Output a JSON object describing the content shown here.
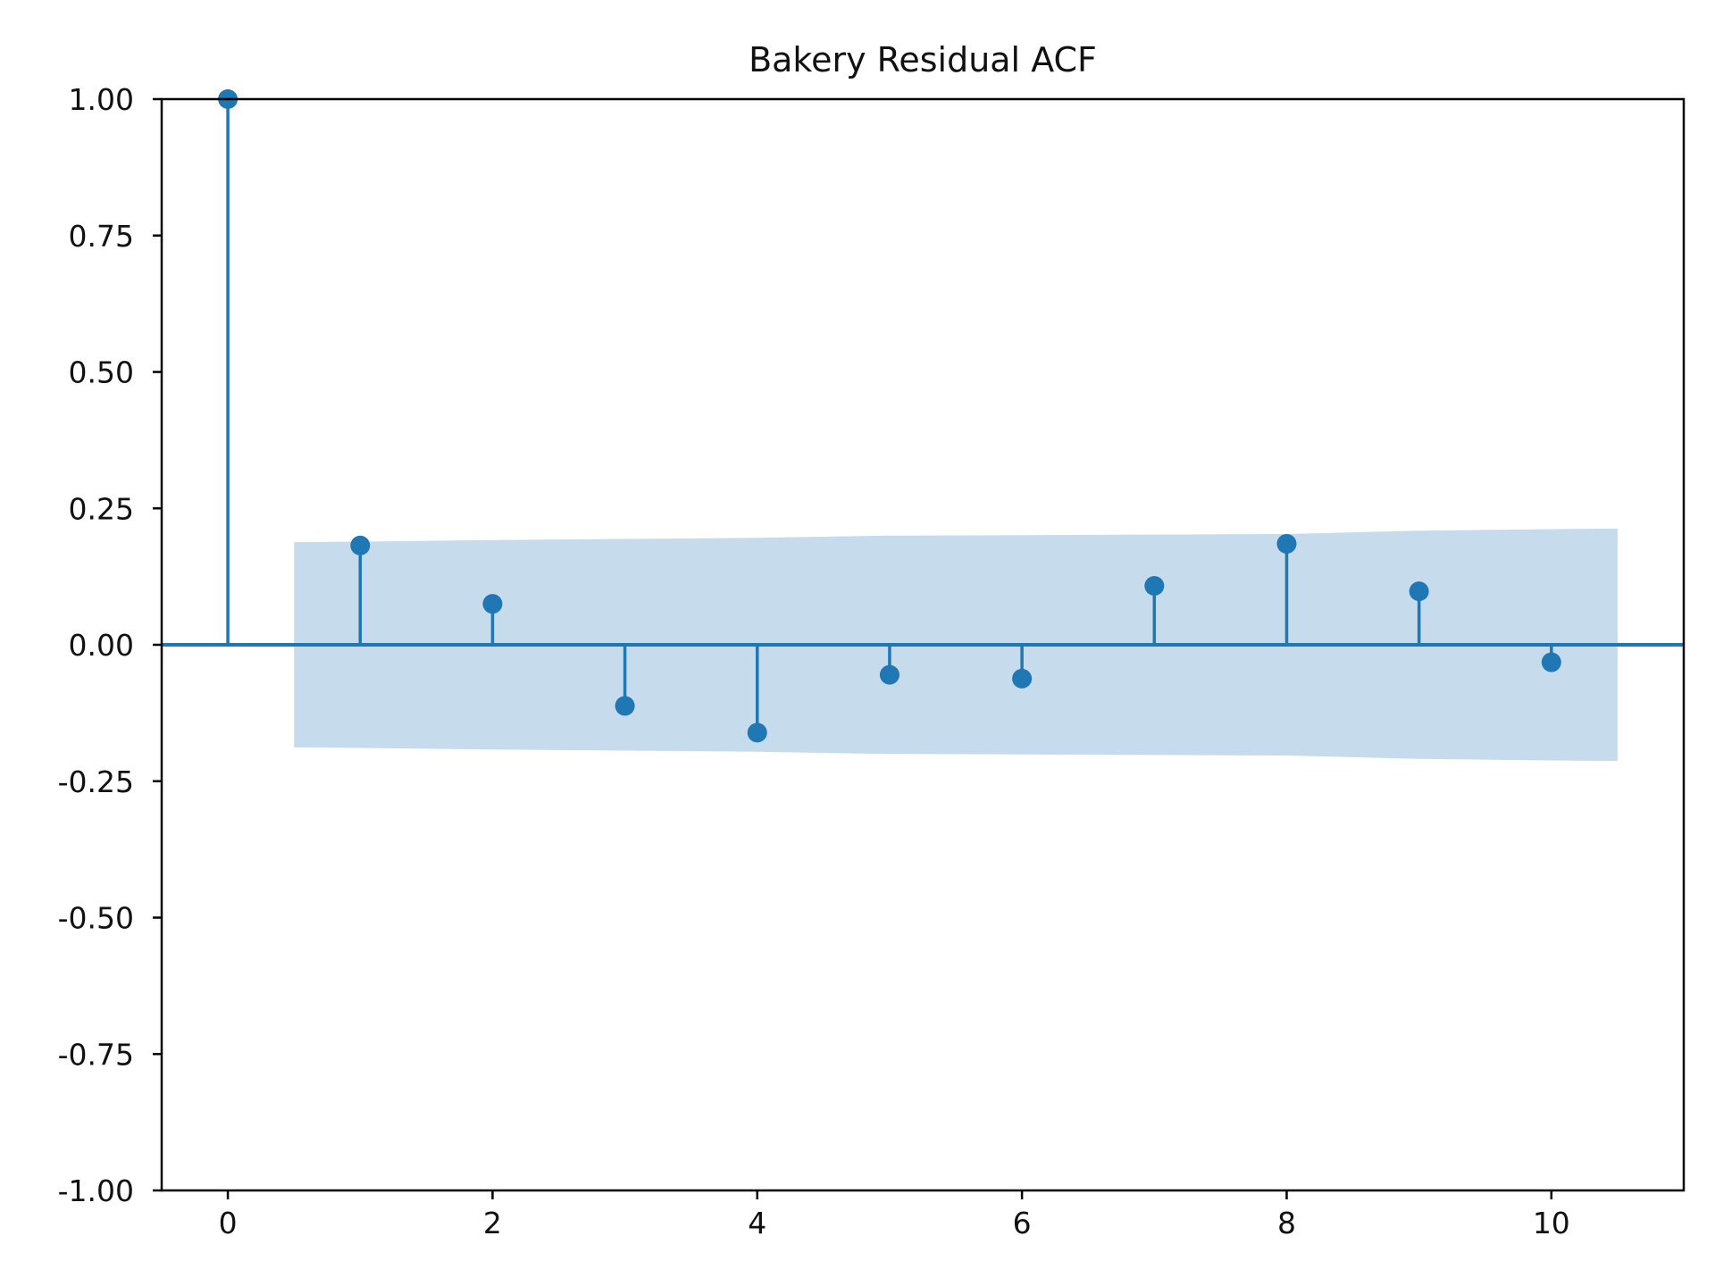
{
  "chart_data": {
    "type": "stem",
    "title": "Bakery Residual ACF",
    "xlabel": "",
    "ylabel": "",
    "xlim": [
      -0.5,
      11
    ],
    "ylim": [
      -1.0,
      1.0
    ],
    "xticks": [
      0,
      2,
      4,
      6,
      8,
      10
    ],
    "xtick_labels": [
      "0",
      "2",
      "4",
      "6",
      "8",
      "10"
    ],
    "yticks": [
      1.0,
      0.75,
      0.5,
      0.25,
      0.0,
      -0.25,
      -0.5,
      -0.75,
      -1.0
    ],
    "ytick_labels": [
      "1.00",
      "0.75",
      "0.50",
      "0.25",
      "0.00",
      "-0.25",
      "-0.50",
      "-0.75",
      "-1.00"
    ],
    "lags": [
      0,
      1,
      2,
      3,
      4,
      5,
      6,
      7,
      8,
      9,
      10
    ],
    "acf": [
      1.0,
      0.182,
      0.075,
      -0.112,
      -0.161,
      -0.055,
      -0.062,
      0.108,
      0.185,
      0.098,
      -0.032
    ],
    "confidence_band": {
      "lags": [
        0.5,
        1,
        2,
        3,
        4,
        5,
        6,
        7,
        8,
        9,
        10,
        10.5
      ],
      "upper": [
        0.188,
        0.189,
        0.192,
        0.194,
        0.196,
        0.2,
        0.201,
        0.202,
        0.203,
        0.209,
        0.212,
        0.213
      ],
      "lower": [
        -0.188,
        -0.189,
        -0.192,
        -0.194,
        -0.196,
        -0.2,
        -0.201,
        -0.202,
        -0.203,
        -0.209,
        -0.212,
        -0.213
      ]
    },
    "grid": false,
    "colors": {
      "stem": "#1f77b4",
      "band": "#c6dbec",
      "axis": "#000000"
    }
  }
}
